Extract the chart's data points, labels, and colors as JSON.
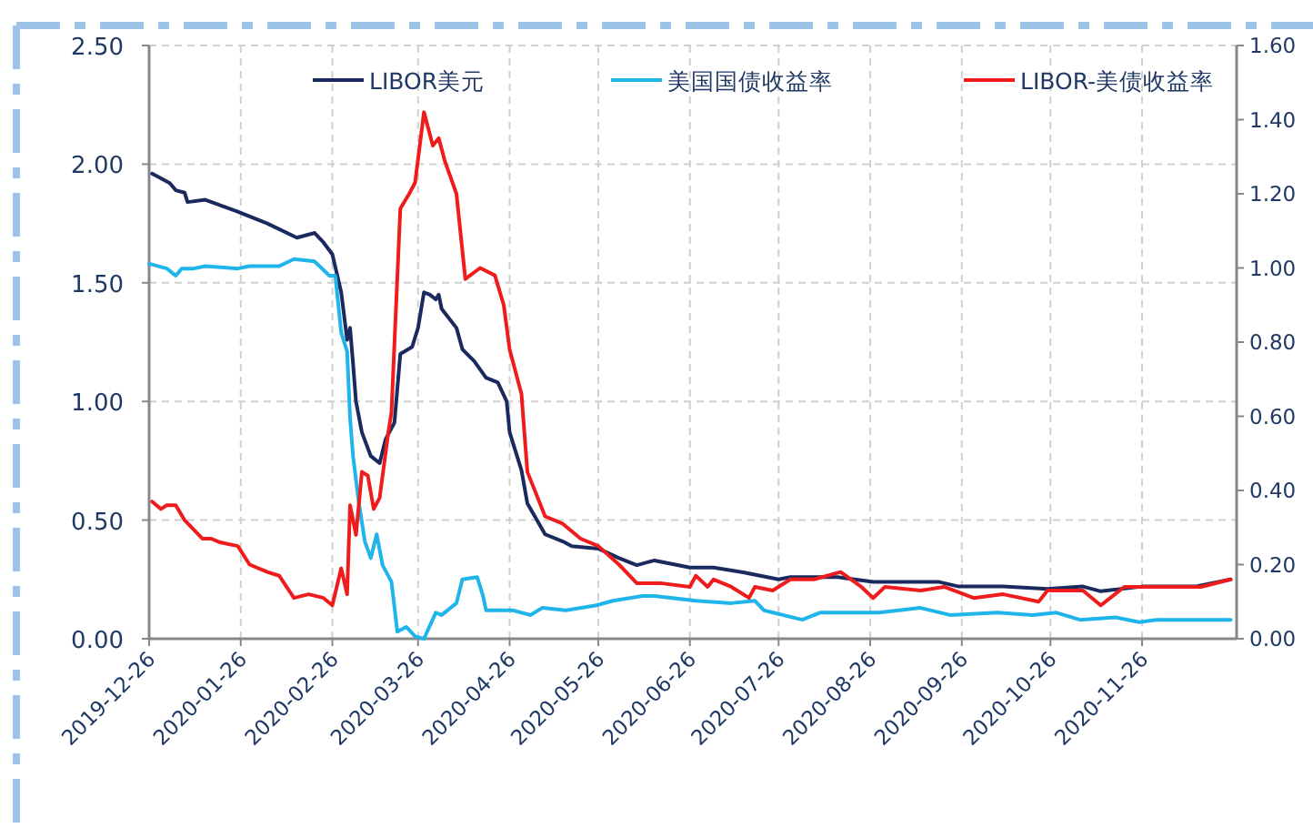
{
  "chart_data": {
    "type": "line",
    "xlim": [
      "2019-12-26",
      "2020-12-28"
    ],
    "xticks": [
      "2019-12-26",
      "2020-01-26",
      "2020-02-26",
      "2020-03-26",
      "2020-04-26",
      "2020-05-26",
      "2020-06-26",
      "2020-07-26",
      "2020-08-26",
      "2020-09-26",
      "2020-10-26",
      "2020-11-26"
    ],
    "ylim": [
      0,
      2.5
    ],
    "yticks": [
      {
        "value": 0,
        "label": "0.00"
      },
      {
        "value": 0.5,
        "label": "0.50"
      },
      {
        "value": 1,
        "label": "1.00"
      },
      {
        "value": 1.5,
        "label": "1.50"
      },
      {
        "value": 2,
        "label": "2.00"
      },
      {
        "value": 2.5,
        "label": "2.50"
      }
    ],
    "y2lim": [
      0,
      1.6
    ],
    "y2ticks": [
      {
        "value": 0,
        "label": "0.00"
      },
      {
        "value": 0.2,
        "label": "0.20"
      },
      {
        "value": 0.4,
        "label": "0.40"
      },
      {
        "value": 0.6,
        "label": "0.60"
      },
      {
        "value": 0.8,
        "label": "0.80"
      },
      {
        "value": 1,
        "label": "1.00"
      },
      {
        "value": 1.2,
        "label": "1.20"
      },
      {
        "value": 1.4,
        "label": "1.40"
      },
      {
        "value": 1.6,
        "label": "1.60"
      }
    ],
    "grid": true,
    "legend": "top",
    "marker": "none",
    "line_style": "solid",
    "series": [
      {
        "name": "LIBOR美元",
        "color": "#1b2a5e",
        "x": [
          "2019-12-27",
          "2020-01-02",
          "2020-01-04",
          "2020-01-07",
          "2020-01-08",
          "2020-01-14",
          "2020-01-25",
          "2020-02-04",
          "2020-02-14",
          "2020-02-20",
          "2020-02-23",
          "2020-02-26",
          "2020-02-29",
          "2020-03-02",
          "2020-03-03",
          "2020-03-04",
          "2020-03-05",
          "2020-03-07",
          "2020-03-10",
          "2020-03-13",
          "2020-03-15",
          "2020-03-18",
          "2020-03-20",
          "2020-03-24",
          "2020-03-26",
          "2020-03-28",
          "2020-03-30",
          "2020-04-01",
          "2020-04-02",
          "2020-04-03",
          "2020-04-08",
          "2020-04-10",
          "2020-04-14",
          "2020-04-18",
          "2020-04-22",
          "2020-04-25",
          "2020-04-26",
          "2020-04-30",
          "2020-05-02",
          "2020-05-08",
          "2020-05-14",
          "2020-05-17",
          "2020-05-26",
          "2020-06-02",
          "2020-06-08",
          "2020-06-14",
          "2020-06-26",
          "2020-07-04",
          "2020-07-14",
          "2020-07-26",
          "2020-07-30",
          "2020-08-15",
          "2020-08-27",
          "2020-09-18",
          "2020-09-25",
          "2020-10-10",
          "2020-10-25",
          "2020-11-06",
          "2020-11-12",
          "2020-11-26",
          "2020-12-14",
          "2020-12-26"
        ],
        "values": [
          1.96,
          1.92,
          1.89,
          1.88,
          1.84,
          1.85,
          1.8,
          1.75,
          1.69,
          1.71,
          1.67,
          1.62,
          1.46,
          1.26,
          1.31,
          1.16,
          1.0,
          0.87,
          0.77,
          0.74,
          0.84,
          0.91,
          1.2,
          1.23,
          1.31,
          1.46,
          1.45,
          1.43,
          1.45,
          1.39,
          1.31,
          1.22,
          1.17,
          1.1,
          1.08,
          1.0,
          0.87,
          0.71,
          0.57,
          0.44,
          0.41,
          0.39,
          0.38,
          0.34,
          0.31,
          0.33,
          0.3,
          0.3,
          0.28,
          0.25,
          0.26,
          0.26,
          0.24,
          0.24,
          0.22,
          0.22,
          0.21,
          0.22,
          0.2,
          0.22,
          0.22,
          0.25
        ]
      },
      {
        "name": "美国国债收益率",
        "color": "#1fb4ea",
        "x": [
          "2019-12-26",
          "2020-01-01",
          "2020-01-04",
          "2020-01-06",
          "2020-01-10",
          "2020-01-14",
          "2020-01-25",
          "2020-01-29",
          "2020-02-08",
          "2020-02-13",
          "2020-02-20",
          "2020-02-25",
          "2020-02-27",
          "2020-02-29",
          "2020-03-02",
          "2020-03-03",
          "2020-03-04",
          "2020-03-06",
          "2020-03-08",
          "2020-03-10",
          "2020-03-12",
          "2020-03-14",
          "2020-03-17",
          "2020-03-19",
          "2020-03-22",
          "2020-03-25",
          "2020-03-28",
          "2020-04-01",
          "2020-04-03",
          "2020-04-08",
          "2020-04-10",
          "2020-04-15",
          "2020-04-17",
          "2020-04-18",
          "2020-04-27",
          "2020-05-03",
          "2020-05-07",
          "2020-05-15",
          "2020-05-25",
          "2020-05-31",
          "2020-06-10",
          "2020-06-14",
          "2020-06-28",
          "2020-07-10",
          "2020-07-18",
          "2020-07-21",
          "2020-08-03",
          "2020-08-09",
          "2020-08-29",
          "2020-09-12",
          "2020-09-22",
          "2020-10-08",
          "2020-10-20",
          "2020-10-28",
          "2020-11-05",
          "2020-11-17",
          "2020-11-25",
          "2020-12-01",
          "2020-12-26"
        ],
        "values": [
          1.58,
          1.56,
          1.53,
          1.56,
          1.56,
          1.57,
          1.56,
          1.57,
          1.57,
          1.6,
          1.59,
          1.53,
          1.53,
          1.29,
          1.21,
          0.93,
          0.77,
          0.57,
          0.41,
          0.34,
          0.44,
          0.31,
          0.24,
          0.03,
          0.05,
          0.01,
          0.0,
          0.11,
          0.1,
          0.15,
          0.25,
          0.26,
          0.18,
          0.12,
          0.12,
          0.1,
          0.13,
          0.12,
          0.14,
          0.16,
          0.18,
          0.18,
          0.16,
          0.15,
          0.16,
          0.12,
          0.08,
          0.11,
          0.11,
          0.13,
          0.1,
          0.11,
          0.1,
          0.11,
          0.08,
          0.09,
          0.07,
          0.08,
          0.08
        ]
      },
      {
        "name": "LIBOR-美债收益率",
        "color": "#ee1c1c",
        "axis": "y2",
        "x": [
          "2019-12-27",
          "2019-12-30",
          "2020-01-01",
          "2020-01-04",
          "2020-01-07",
          "2020-01-13",
          "2020-01-16",
          "2020-01-19",
          "2020-01-25",
          "2020-01-29",
          "2020-02-04",
          "2020-02-08",
          "2020-02-13",
          "2020-02-18",
          "2020-02-23",
          "2020-02-26",
          "2020-02-29",
          "2020-03-02",
          "2020-03-03",
          "2020-03-05",
          "2020-03-07",
          "2020-03-09",
          "2020-03-11",
          "2020-03-13",
          "2020-03-16",
          "2020-03-17",
          "2020-03-20",
          "2020-03-23",
          "2020-03-25",
          "2020-03-28",
          "2020-03-31",
          "2020-04-02",
          "2020-04-04",
          "2020-04-08",
          "2020-04-11",
          "2020-04-16",
          "2020-04-21",
          "2020-04-24",
          "2020-04-26",
          "2020-04-30",
          "2020-05-02",
          "2020-05-08",
          "2020-05-14",
          "2020-05-20",
          "2020-05-26",
          "2020-06-02",
          "2020-06-08",
          "2020-06-16",
          "2020-06-26",
          "2020-06-28",
          "2020-07-02",
          "2020-07-04",
          "2020-07-10",
          "2020-07-16",
          "2020-07-18",
          "2020-07-24",
          "2020-07-30",
          "2020-08-07",
          "2020-08-16",
          "2020-08-23",
          "2020-08-27",
          "2020-08-31",
          "2020-09-12",
          "2020-09-20",
          "2020-09-30",
          "2020-10-10",
          "2020-10-22",
          "2020-10-25",
          "2020-11-06",
          "2020-11-12",
          "2020-11-20",
          "2020-11-30",
          "2020-12-16",
          "2020-12-26"
        ],
        "values": [
          0.37,
          0.35,
          0.36,
          0.36,
          0.32,
          0.27,
          0.27,
          0.26,
          0.25,
          0.2,
          0.18,
          0.17,
          0.11,
          0.12,
          0.11,
          0.09,
          0.19,
          0.12,
          0.36,
          0.28,
          0.45,
          0.44,
          0.35,
          0.38,
          0.56,
          0.61,
          1.16,
          1.2,
          1.23,
          1.42,
          1.33,
          1.35,
          1.29,
          1.2,
          0.97,
          1.0,
          0.98,
          0.9,
          0.78,
          0.66,
          0.45,
          0.33,
          0.31,
          0.27,
          0.25,
          0.2,
          0.15,
          0.15,
          0.14,
          0.17,
          0.14,
          0.16,
          0.14,
          0.11,
          0.14,
          0.13,
          0.16,
          0.16,
          0.18,
          0.14,
          0.11,
          0.14,
          0.13,
          0.14,
          0.11,
          0.12,
          0.1,
          0.13,
          0.13,
          0.09,
          0.14,
          0.14,
          0.14,
          0.16
        ]
      }
    ]
  }
}
